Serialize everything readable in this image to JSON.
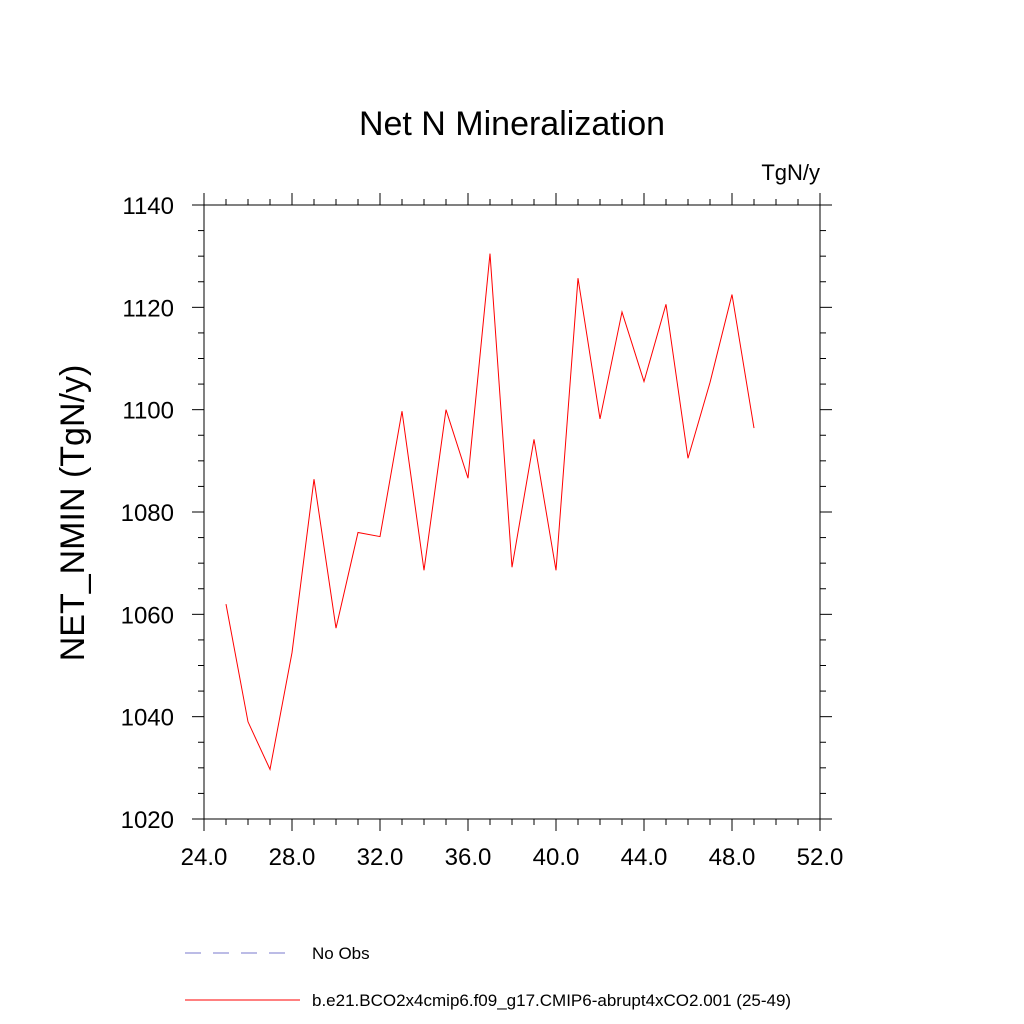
{
  "chart_data": {
    "type": "line",
    "title": "Net N Mineralization",
    "units_label": "TgN/y",
    "xlabel": "",
    "ylabel": "NET_NMIN  (TgN/y)",
    "xlim": [
      24.0,
      52.0
    ],
    "ylim": [
      1020,
      1140
    ],
    "x_ticks": [
      24,
      28,
      32,
      36,
      40,
      44,
      48,
      52
    ],
    "x_tick_labels": [
      "24.0",
      "28.0",
      "32.0",
      "36.0",
      "40.0",
      "44.0",
      "48.0",
      "52.0"
    ],
    "y_ticks": [
      1020,
      1040,
      1060,
      1080,
      1100,
      1120,
      1140
    ],
    "y_tick_labels": [
      "1020",
      "1040",
      "1060",
      "1080",
      "1100",
      "1120",
      "1140"
    ],
    "x_minor_step": 1,
    "y_minor_step": 5,
    "grid": false,
    "legend_position": "bottom-left",
    "series": [
      {
        "name": "No Obs",
        "color": "#7a7acc",
        "dash": "dashed",
        "x": [],
        "values": []
      },
      {
        "name": "b.e21.BCO2x4cmip6.f09_g17.CMIP6-abrupt4xCO2.001 (25-49)",
        "color": "#ff0000",
        "dash": "solid",
        "x": [
          25,
          26,
          27,
          28,
          29,
          30,
          31,
          32,
          33,
          34,
          35,
          36,
          37,
          38,
          39,
          40,
          41,
          42,
          43,
          44,
          45,
          46,
          47,
          48,
          49
        ],
        "values": [
          1062.0,
          1039.0,
          1029.7,
          1052.5,
          1086.4,
          1057.3,
          1076.0,
          1075.2,
          1099.7,
          1068.6,
          1100.0,
          1086.6,
          1130.5,
          1069.2,
          1094.2,
          1068.6,
          1125.7,
          1098.2,
          1119.1,
          1105.5,
          1120.6,
          1090.5,
          1105.3,
          1122.5,
          1096.4
        ]
      }
    ]
  }
}
